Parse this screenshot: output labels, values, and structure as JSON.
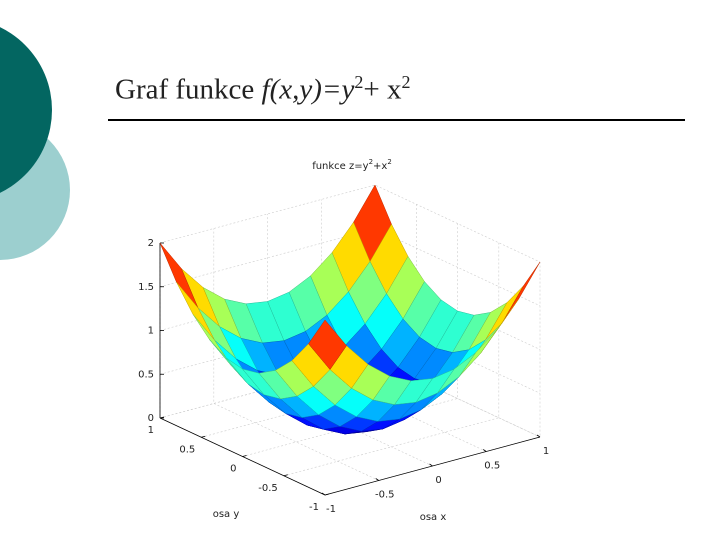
{
  "header": {
    "title_parts": [
      "Graf funkce ",
      "f(x,y)",
      "=y",
      "2",
      "+ x",
      "2"
    ]
  },
  "chart_data": {
    "type": "surface",
    "title_parts": [
      "funkce z=y",
      "2",
      "+x",
      "2"
    ],
    "x_label": "osa x",
    "y_label": "osa y",
    "x": [
      -1,
      -0.8,
      -0.6,
      -0.4,
      -0.2,
      0,
      0.2,
      0.4,
      0.6,
      0.8,
      1
    ],
    "y": [
      -1,
      -0.8,
      -0.6,
      -0.4,
      -0.2,
      0,
      0.2,
      0.4,
      0.6,
      0.8,
      1
    ],
    "z": [
      [
        2,
        1.64,
        1.36,
        1.16,
        1.04,
        1,
        1.04,
        1.16,
        1.36,
        1.64,
        2
      ],
      [
        1.64,
        1.28,
        1,
        0.8,
        0.68,
        0.64,
        0.68,
        0.8,
        1,
        1.28,
        1.64
      ],
      [
        1.36,
        1,
        0.72,
        0.52,
        0.4,
        0.36,
        0.4,
        0.52,
        0.72,
        1,
        1.36
      ],
      [
        1.16,
        0.8,
        0.52,
        0.32,
        0.2,
        0.16,
        0.2,
        0.32,
        0.52,
        0.8,
        1.16
      ],
      [
        1.04,
        0.68,
        0.4,
        0.2,
        0.08,
        0.04,
        0.08,
        0.2,
        0.4,
        0.68,
        1.04
      ],
      [
        1,
        0.64,
        0.36,
        0.16,
        0.04,
        0,
        0.04,
        0.16,
        0.36,
        0.64,
        1
      ],
      [
        1.04,
        0.68,
        0.4,
        0.2,
        0.08,
        0.04,
        0.08,
        0.2,
        0.4,
        0.68,
        1.04
      ],
      [
        1.16,
        0.8,
        0.52,
        0.32,
        0.2,
        0.16,
        0.2,
        0.32,
        0.52,
        0.8,
        1.16
      ],
      [
        1.36,
        1,
        0.72,
        0.52,
        0.4,
        0.36,
        0.4,
        0.52,
        0.72,
        1,
        1.36
      ],
      [
        1.64,
        1.28,
        1,
        0.8,
        0.68,
        0.64,
        0.68,
        0.8,
        1,
        1.28,
        1.64
      ],
      [
        2,
        1.64,
        1.36,
        1.16,
        1.04,
        1,
        1.04,
        1.16,
        1.36,
        1.64,
        2
      ]
    ],
    "xlim": [
      -1,
      1
    ],
    "ylim": [
      -1,
      1
    ],
    "zlim": [
      0,
      2
    ],
    "xticks": [
      -1,
      -0.5,
      0,
      0.5,
      1
    ],
    "yticks": [
      -1,
      -0.5,
      0,
      0.5,
      1
    ],
    "zticks": [
      0,
      0.5,
      1,
      1.5,
      2
    ],
    "grid": true,
    "colormap": "jet"
  }
}
